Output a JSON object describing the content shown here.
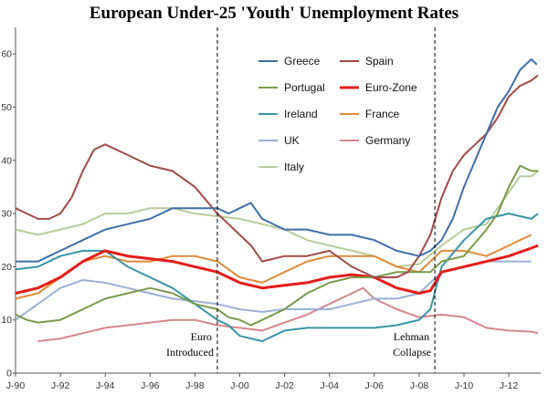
{
  "chart_data": {
    "type": "line",
    "title": "European Under-25 'Youth' Unemployment Rates",
    "xlabel": "",
    "ylabel": "",
    "x_range": [
      1990.0,
      2013.42
    ],
    "ylim": [
      0,
      65
    ],
    "y_ticks": [
      0,
      10,
      20,
      30,
      40,
      50,
      60
    ],
    "x_ticks": [
      {
        "x": 1990,
        "label": "J-90"
      },
      {
        "x": 1992,
        "label": "J-92"
      },
      {
        "x": 1994,
        "label": "J-94"
      },
      {
        "x": 1996,
        "label": "J-96"
      },
      {
        "x": 1998,
        "label": "J-98"
      },
      {
        "x": 2000,
        "label": "J-00"
      },
      {
        "x": 2002,
        "label": "J-02"
      },
      {
        "x": 2004,
        "label": "J-04"
      },
      {
        "x": 2006,
        "label": "J-06"
      },
      {
        "x": 2008,
        "label": "J-08"
      },
      {
        "x": 2010,
        "label": "J-10"
      },
      {
        "x": 2012,
        "label": "J-12"
      }
    ],
    "grid": false,
    "legend_position": "top-center",
    "annotations": [
      {
        "x": 1999.0,
        "line1": "Euro",
        "line2": "Introduced"
      },
      {
        "x": 2008.7,
        "line1": "Lehman",
        "line2": "Collapse"
      }
    ],
    "series": [
      {
        "name": "Greece",
        "color": "#3f6fa8",
        "points": [
          [
            1990,
            21
          ],
          [
            1991,
            21
          ],
          [
            1991.5,
            22
          ],
          [
            1992,
            23
          ],
          [
            1993,
            25
          ],
          [
            1994,
            27
          ],
          [
            1995,
            28
          ],
          [
            1996,
            29
          ],
          [
            1997,
            31
          ],
          [
            1998,
            31
          ],
          [
            1999,
            31
          ],
          [
            1999.5,
            30
          ],
          [
            2000,
            31
          ],
          [
            2000.5,
            32
          ],
          [
            2001,
            29
          ],
          [
            2002,
            27
          ],
          [
            2003,
            27
          ],
          [
            2004,
            26
          ],
          [
            2005,
            26
          ],
          [
            2006,
            25
          ],
          [
            2007,
            23
          ],
          [
            2008,
            22
          ],
          [
            2008.5,
            23
          ],
          [
            2009,
            25
          ],
          [
            2009.5,
            29
          ],
          [
            2010,
            35
          ],
          [
            2010.5,
            40
          ],
          [
            2011,
            45
          ],
          [
            2011.5,
            50
          ],
          [
            2012,
            53
          ],
          [
            2012.5,
            57
          ],
          [
            2013,
            59
          ],
          [
            2013.25,
            58
          ]
        ]
      },
      {
        "name": "Spain",
        "color": "#a14a46",
        "points": [
          [
            1990,
            31
          ],
          [
            1990.5,
            30
          ],
          [
            1991,
            29
          ],
          [
            1991.5,
            29
          ],
          [
            1992,
            30
          ],
          [
            1992.5,
            33
          ],
          [
            1993,
            38
          ],
          [
            1993.5,
            42
          ],
          [
            1994,
            43
          ],
          [
            1994.5,
            42
          ],
          [
            1995,
            41
          ],
          [
            1996,
            39
          ],
          [
            1997,
            38
          ],
          [
            1998,
            35
          ],
          [
            1999,
            30
          ],
          [
            1999.5,
            28
          ],
          [
            2000,
            26
          ],
          [
            2000.5,
            24
          ],
          [
            2001,
            21
          ],
          [
            2002,
            22
          ],
          [
            2003,
            22
          ],
          [
            2004,
            23
          ],
          [
            2005,
            20
          ],
          [
            2006,
            18
          ],
          [
            2007,
            18
          ],
          [
            2007.5,
            19
          ],
          [
            2008,
            22
          ],
          [
            2008.5,
            26
          ],
          [
            2009,
            33
          ],
          [
            2009.5,
            38
          ],
          [
            2010,
            41
          ],
          [
            2010.5,
            43
          ],
          [
            2011,
            45
          ],
          [
            2011.5,
            48
          ],
          [
            2012,
            52
          ],
          [
            2012.5,
            54
          ],
          [
            2013,
            55
          ],
          [
            2013.3,
            56
          ]
        ]
      },
      {
        "name": "Portugal",
        "color": "#7a9a4a",
        "points": [
          [
            1990,
            11
          ],
          [
            1990.5,
            10
          ],
          [
            1991,
            9.5
          ],
          [
            1992,
            10
          ],
          [
            1993,
            12
          ],
          [
            1994,
            14
          ],
          [
            1995,
            15
          ],
          [
            1996,
            16
          ],
          [
            1997,
            15
          ],
          [
            1998,
            13
          ],
          [
            1999,
            12
          ],
          [
            1999.5,
            10.5
          ],
          [
            2000,
            10
          ],
          [
            2000.5,
            9
          ],
          [
            2001,
            10
          ],
          [
            2002,
            12
          ],
          [
            2003,
            15
          ],
          [
            2004,
            17
          ],
          [
            2005,
            18
          ],
          [
            2006,
            18
          ],
          [
            2007,
            19
          ],
          [
            2008,
            19
          ],
          [
            2008.5,
            19
          ],
          [
            2009,
            21
          ],
          [
            2010,
            22
          ],
          [
            2011,
            27
          ],
          [
            2011.5,
            30
          ],
          [
            2012,
            35
          ],
          [
            2012.5,
            39
          ],
          [
            2013,
            38
          ],
          [
            2013.3,
            38
          ]
        ]
      },
      {
        "name": "Euro-Zone",
        "color": "#e51c18",
        "points": [
          [
            1990,
            15
          ],
          [
            1991,
            16
          ],
          [
            1992,
            18
          ],
          [
            1993,
            21
          ],
          [
            1993.5,
            22
          ],
          [
            1994,
            23
          ],
          [
            1995,
            22
          ],
          [
            1996,
            21.5
          ],
          [
            1997,
            21
          ],
          [
            1998,
            20
          ],
          [
            1999,
            19
          ],
          [
            2000,
            17
          ],
          [
            2001,
            16
          ],
          [
            2002,
            16.5
          ],
          [
            2003,
            17
          ],
          [
            2004,
            18
          ],
          [
            2005,
            18.5
          ],
          [
            2006,
            18
          ],
          [
            2007,
            16
          ],
          [
            2008,
            15
          ],
          [
            2008.5,
            15.5
          ],
          [
            2009,
            19
          ],
          [
            2010,
            20
          ],
          [
            2011,
            21
          ],
          [
            2012,
            22
          ],
          [
            2013,
            23.5
          ],
          [
            2013.3,
            24
          ]
        ]
      },
      {
        "name": "Ireland",
        "color": "#3a93a8",
        "points": [
          [
            1990,
            19.5
          ],
          [
            1991,
            20
          ],
          [
            1992,
            22
          ],
          [
            1993,
            23
          ],
          [
            1994,
            23
          ],
          [
            1995,
            20
          ],
          [
            1996,
            18
          ],
          [
            1997,
            16
          ],
          [
            1998,
            13
          ],
          [
            1999,
            10
          ],
          [
            1999.5,
            9
          ],
          [
            2000,
            7
          ],
          [
            2001,
            6
          ],
          [
            2001.5,
            7
          ],
          [
            2002,
            8
          ],
          [
            2003,
            8.5
          ],
          [
            2004,
            8.5
          ],
          [
            2005,
            8.5
          ],
          [
            2006,
            8.5
          ],
          [
            2007,
            9
          ],
          [
            2008,
            10
          ],
          [
            2008.5,
            12
          ],
          [
            2009,
            20
          ],
          [
            2010,
            25
          ],
          [
            2011,
            29
          ],
          [
            2012,
            30
          ],
          [
            2013,
            29
          ],
          [
            2013.3,
            30
          ]
        ]
      },
      {
        "name": "France",
        "color": "#e08a3a",
        "points": [
          [
            1990,
            14
          ],
          [
            1991,
            15
          ],
          [
            1992,
            18
          ],
          [
            1993,
            21
          ],
          [
            1994,
            22
          ],
          [
            1995,
            21
          ],
          [
            1996,
            21
          ],
          [
            1997,
            22
          ],
          [
            1998,
            22
          ],
          [
            1999,
            21
          ],
          [
            2000,
            18
          ],
          [
            2001,
            17
          ],
          [
            2002,
            19
          ],
          [
            2003,
            21
          ],
          [
            2004,
            22
          ],
          [
            2005,
            22
          ],
          [
            2006,
            22
          ],
          [
            2007,
            20
          ],
          [
            2008,
            19
          ],
          [
            2009,
            23
          ],
          [
            2010,
            23
          ],
          [
            2011,
            22
          ],
          [
            2012,
            24
          ],
          [
            2013,
            26
          ]
        ]
      },
      {
        "name": "UK",
        "color": "#9ab0d6",
        "points": [
          [
            1990,
            10
          ],
          [
            1991,
            13
          ],
          [
            1992,
            16
          ],
          [
            1993,
            17.5
          ],
          [
            1994,
            17
          ],
          [
            1995,
            16
          ],
          [
            1996,
            15
          ],
          [
            1997,
            14
          ],
          [
            1998,
            13.5
          ],
          [
            1999,
            13
          ],
          [
            2000,
            12
          ],
          [
            2001,
            11.5
          ],
          [
            2002,
            12
          ],
          [
            2003,
            12
          ],
          [
            2004,
            12
          ],
          [
            2005,
            13
          ],
          [
            2006,
            14
          ],
          [
            2007,
            14
          ],
          [
            2008,
            15
          ],
          [
            2009,
            19
          ],
          [
            2010,
            20
          ],
          [
            2011,
            21
          ],
          [
            2012,
            21
          ],
          [
            2013,
            21
          ]
        ]
      },
      {
        "name": "Germany",
        "color": "#d4868c",
        "points": [
          [
            1991,
            6
          ],
          [
            1992,
            6.5
          ],
          [
            1993,
            7.5
          ],
          [
            1994,
            8.5
          ],
          [
            1995,
            9
          ],
          [
            1996,
            9.5
          ],
          [
            1997,
            10
          ],
          [
            1998,
            10
          ],
          [
            1999,
            9
          ],
          [
            2000,
            8.5
          ],
          [
            2001,
            8
          ],
          [
            2002,
            9.5
          ],
          [
            2003,
            11
          ],
          [
            2004,
            13
          ],
          [
            2005,
            15
          ],
          [
            2005.5,
            16
          ],
          [
            2006,
            14
          ],
          [
            2007,
            12
          ],
          [
            2008,
            10.5
          ],
          [
            2009,
            11
          ],
          [
            2010,
            10.5
          ],
          [
            2011,
            8.5
          ],
          [
            2012,
            8
          ],
          [
            2013,
            7.8
          ],
          [
            2013.3,
            7.5
          ]
        ]
      },
      {
        "name": "Italy",
        "color": "#b7cc9a",
        "points": [
          [
            1990,
            27
          ],
          [
            1991,
            26
          ],
          [
            1992,
            27
          ],
          [
            1993,
            28
          ],
          [
            1994,
            30
          ],
          [
            1995,
            30
          ],
          [
            1996,
            31
          ],
          [
            1997,
            31
          ],
          [
            1998,
            30
          ],
          [
            1999,
            29.5
          ],
          [
            2000,
            29
          ],
          [
            2001,
            28
          ],
          [
            2002,
            27
          ],
          [
            2003,
            25
          ],
          [
            2004,
            24
          ],
          [
            2005,
            23
          ],
          [
            2006,
            22
          ],
          [
            2007,
            20
          ],
          [
            2008,
            20.5
          ],
          [
            2009,
            24
          ],
          [
            2010,
            27
          ],
          [
            2011,
            28
          ],
          [
            2012,
            34
          ],
          [
            2012.5,
            37
          ],
          [
            2013,
            37
          ],
          [
            2013.3,
            38
          ]
        ]
      }
    ]
  }
}
